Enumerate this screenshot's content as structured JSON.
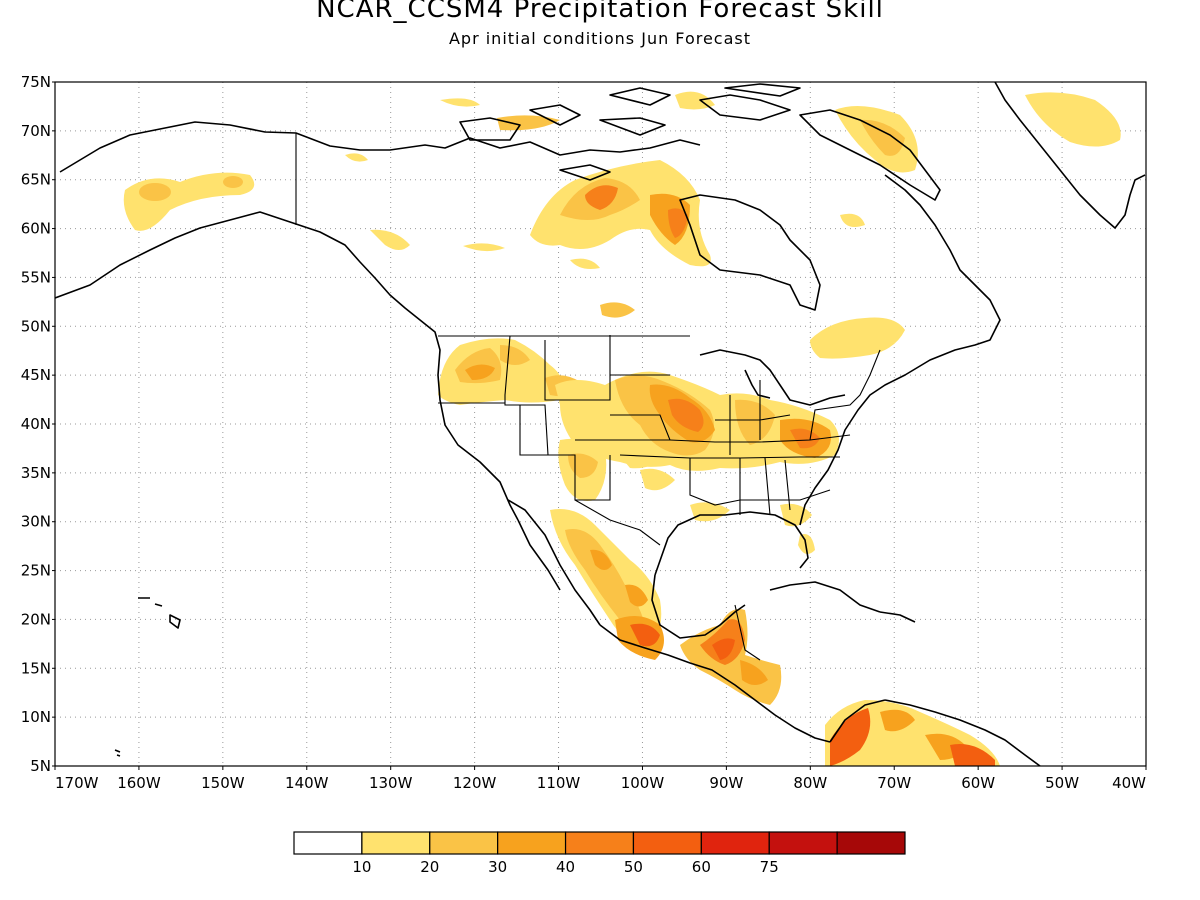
{
  "title": "NCAR_CCSM4 Precipitation Forecast Skill",
  "subtitle": "Apr initial conditions  Jun Forecast",
  "axes": {
    "lat_labels": [
      "75N",
      "70N",
      "65N",
      "60N",
      "55N",
      "50N",
      "45N",
      "40N",
      "35N",
      "30N",
      "25N",
      "20N",
      "15N",
      "10N",
      "5N"
    ],
    "lon_labels": [
      "170W",
      "160W",
      "150W",
      "140W",
      "130W",
      "120W",
      "110W",
      "100W",
      "90W",
      "80W",
      "70W",
      "60W",
      "50W",
      "40W"
    ],
    "lat_range": [
      5,
      75
    ],
    "lon_range": [
      -170,
      -40
    ],
    "grid": "dotted"
  },
  "colorbar": {
    "labels": [
      "10",
      "20",
      "30",
      "40",
      "50",
      "60",
      "75"
    ],
    "colors": [
      "#ffffff",
      "#ffe26e",
      "#fac346",
      "#f7a21e",
      "#f6801a",
      "#f35f10",
      "#e0240e",
      "#c4110e",
      "#a60808"
    ]
  },
  "map": {
    "land_outline": "#000000",
    "skill_regions": [
      {
        "region": "Alaska",
        "level": 1
      },
      {
        "region": "Hudson Bay west",
        "level": 3
      },
      {
        "region": "Pacific Northwest",
        "level": 3
      },
      {
        "region": "Central US / Midwest",
        "level": 4
      },
      {
        "region": "Appalachians",
        "level": 4
      },
      {
        "region": "Mexico west coast",
        "level": 2
      },
      {
        "region": "Southern Mexico",
        "level": 5
      },
      {
        "region": "Central America",
        "level": 5
      },
      {
        "region": "Northern South America",
        "level": 5
      },
      {
        "region": "Greenland",
        "level": 1
      },
      {
        "region": "Baffin Island",
        "level": 2
      }
    ]
  }
}
